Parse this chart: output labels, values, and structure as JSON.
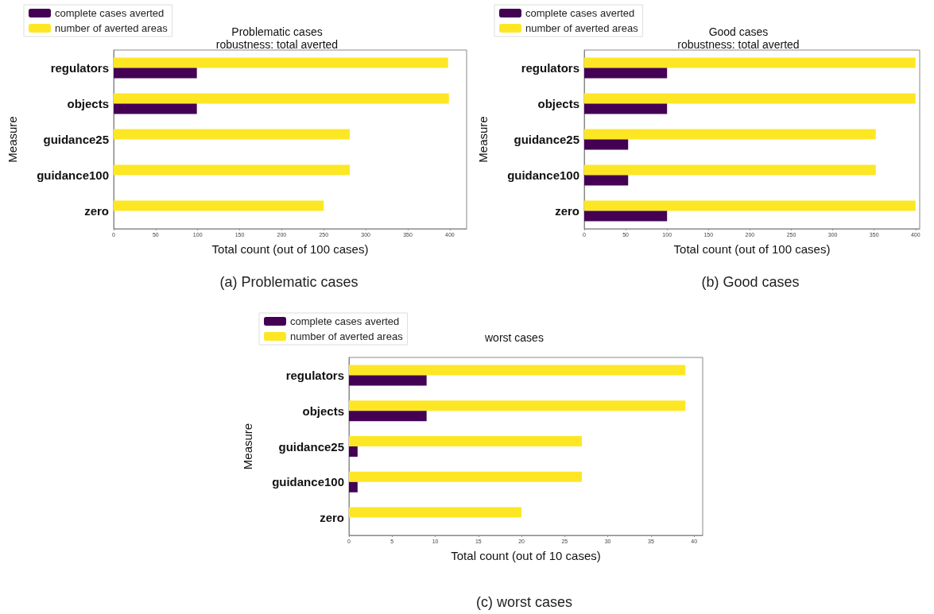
{
  "chart_data": [
    {
      "type": "bar",
      "orientation": "horizontal",
      "title": "Problematic cases\nrobustness: total averted",
      "xlabel": "Total count (out of 100 cases)",
      "ylabel": "Measure",
      "categories": [
        "regulators",
        "objects",
        "guidance25",
        "guidance100",
        "zero"
      ],
      "series": [
        {
          "name": "complete cases averted",
          "color": "#440154",
          "values": [
            99,
            99,
            0,
            0,
            0
          ]
        },
        {
          "name": "number of averted areas",
          "color": "#fde725",
          "values": [
            398,
            399,
            281,
            281,
            250
          ]
        }
      ],
      "xlim": [
        0,
        420
      ],
      "xticks": [
        0,
        50,
        100,
        150,
        200,
        250,
        300,
        350,
        400
      ],
      "legend": "top left",
      "grid": false,
      "annotations": [
        "(a) Problematic cases"
      ]
    },
    {
      "type": "bar",
      "orientation": "horizontal",
      "title": "Good cases\nrobustness: total averted",
      "xlabel": "Total count (out of 100 cases)",
      "ylabel": "Measure",
      "categories": [
        "regulators",
        "objects",
        "guidance25",
        "guidance100",
        "zero"
      ],
      "series": [
        {
          "name": "complete cases averted",
          "color": "#440154",
          "values": [
            100,
            100,
            53,
            53,
            100
          ]
        },
        {
          "name": "number of averted areas",
          "color": "#fde725",
          "values": [
            400,
            400,
            352,
            352,
            400
          ]
        }
      ],
      "xlim": [
        0,
        405
      ],
      "xticks": [
        0,
        50,
        100,
        150,
        200,
        250,
        300,
        350,
        400
      ],
      "legend": "top left",
      "grid": false,
      "annotations": [
        "(b) Good cases"
      ]
    },
    {
      "type": "bar",
      "orientation": "horizontal",
      "title": "worst cases",
      "xlabel": "Total count (out of 10 cases)",
      "ylabel": "Measure",
      "categories": [
        "regulators",
        "objects",
        "guidance25",
        "guidance100",
        "zero"
      ],
      "series": [
        {
          "name": "complete cases averted",
          "color": "#440154",
          "values": [
            9,
            9,
            1,
            1,
            0
          ]
        },
        {
          "name": "number of averted areas",
          "color": "#fde725",
          "values": [
            39,
            39,
            27,
            27,
            20
          ]
        }
      ],
      "xlim": [
        0,
        41
      ],
      "xticks": [
        0,
        5,
        10,
        15,
        20,
        25,
        30,
        35,
        40
      ],
      "legend": "top left",
      "grid": false,
      "annotations": [
        "(c) worst cases"
      ]
    }
  ]
}
